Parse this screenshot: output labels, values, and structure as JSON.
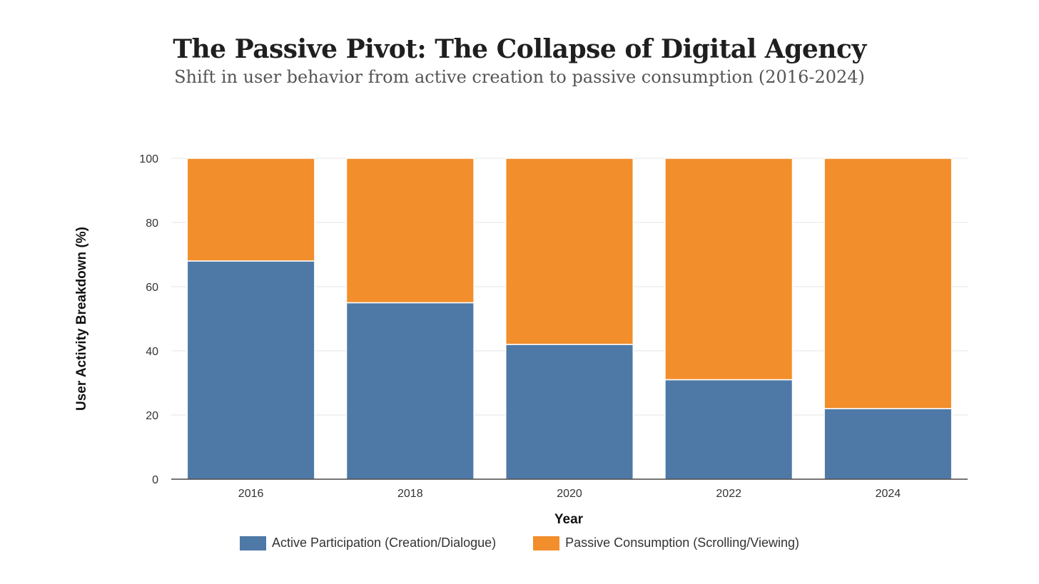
{
  "chart_data": {
    "type": "bar",
    "stacked": true,
    "title": "The Passive Pivot: The Collapse of Digital Agency",
    "subtitle": "Shift in user behavior from active creation to passive consumption (2016-2024)",
    "xlabel": "Year",
    "ylabel": "User Activity Breakdown (%)",
    "ylim": [
      0,
      100
    ],
    "yticks": [
      0,
      20,
      40,
      60,
      80,
      100
    ],
    "grid": true,
    "legend_position": "bottom-center",
    "categories": [
      "2016",
      "2018",
      "2020",
      "2022",
      "2024"
    ],
    "series": [
      {
        "name": "Active Participation (Creation/Dialogue)",
        "color": "#4e79a7",
        "values": [
          68,
          55,
          42,
          31,
          22
        ]
      },
      {
        "name": "Passive Consumption (Scrolling/Viewing)",
        "color": "#f28e2b",
        "values": [
          32,
          45,
          58,
          69,
          78
        ]
      }
    ]
  }
}
